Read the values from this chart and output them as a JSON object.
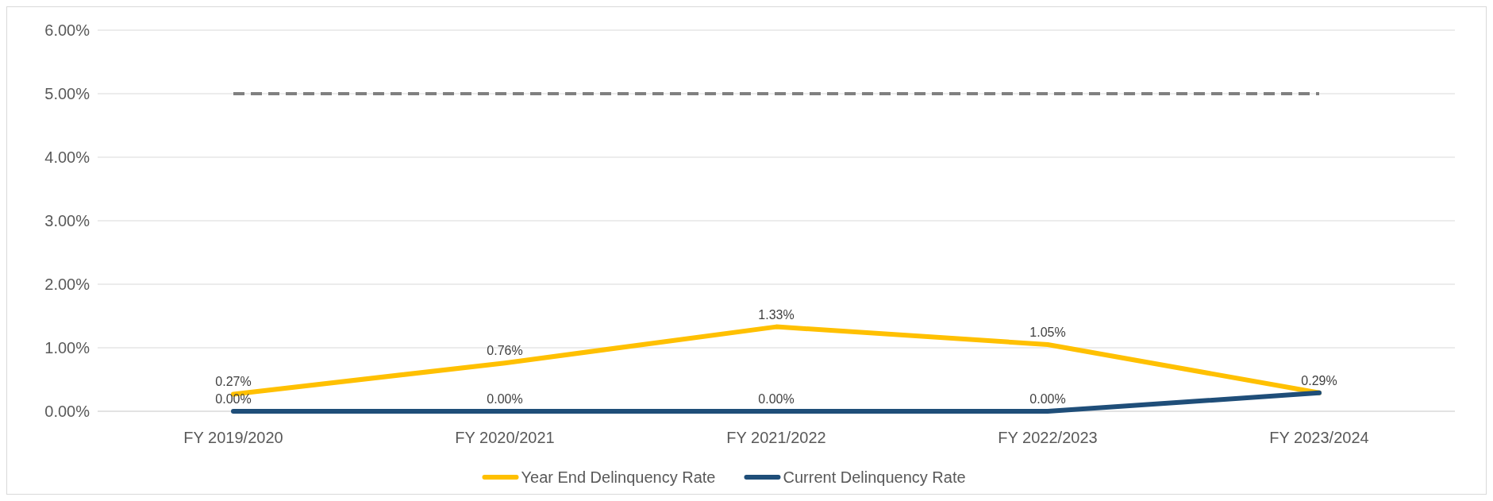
{
  "chart_data": {
    "type": "line",
    "categories": [
      "FY 2019/2020",
      "FY 2020/2021",
      "FY 2021/2022",
      "FY 2022/2023",
      "FY 2023/2024"
    ],
    "series": [
      {
        "name": "Year End Delinquency Rate",
        "color": "#ffc000",
        "values": [
          0.27,
          0.76,
          1.33,
          1.05,
          0.29
        ],
        "value_labels": [
          "0.27%",
          "0.76%",
          "1.33%",
          "1.05%",
          "0.29%"
        ]
      },
      {
        "name": "Current Delinquency Rate",
        "color": "#1f4e79",
        "values": [
          0,
          0,
          0,
          0,
          0.29
        ],
        "value_labels": [
          "0.00%",
          "0.00%",
          "0.00%",
          "0.00%",
          null
        ]
      }
    ],
    "ylim": [
      0,
      6
    ],
    "yticks": [
      {
        "value": 0,
        "label": "0.00%"
      },
      {
        "value": 1,
        "label": "1.00%"
      },
      {
        "value": 2,
        "label": "2.00%"
      },
      {
        "value": 3,
        "label": "3.00%"
      },
      {
        "value": 4,
        "label": "4.00%"
      },
      {
        "value": 5,
        "label": "5.00%"
      },
      {
        "value": 6,
        "label": "6.00%"
      }
    ],
    "ref_lines": [
      {
        "axis": "y",
        "value": 5,
        "color": "#808080",
        "line_style": "dashed"
      }
    ],
    "grid": "y",
    "legend": "bottom",
    "line_style": "solid",
    "marker": "none"
  }
}
